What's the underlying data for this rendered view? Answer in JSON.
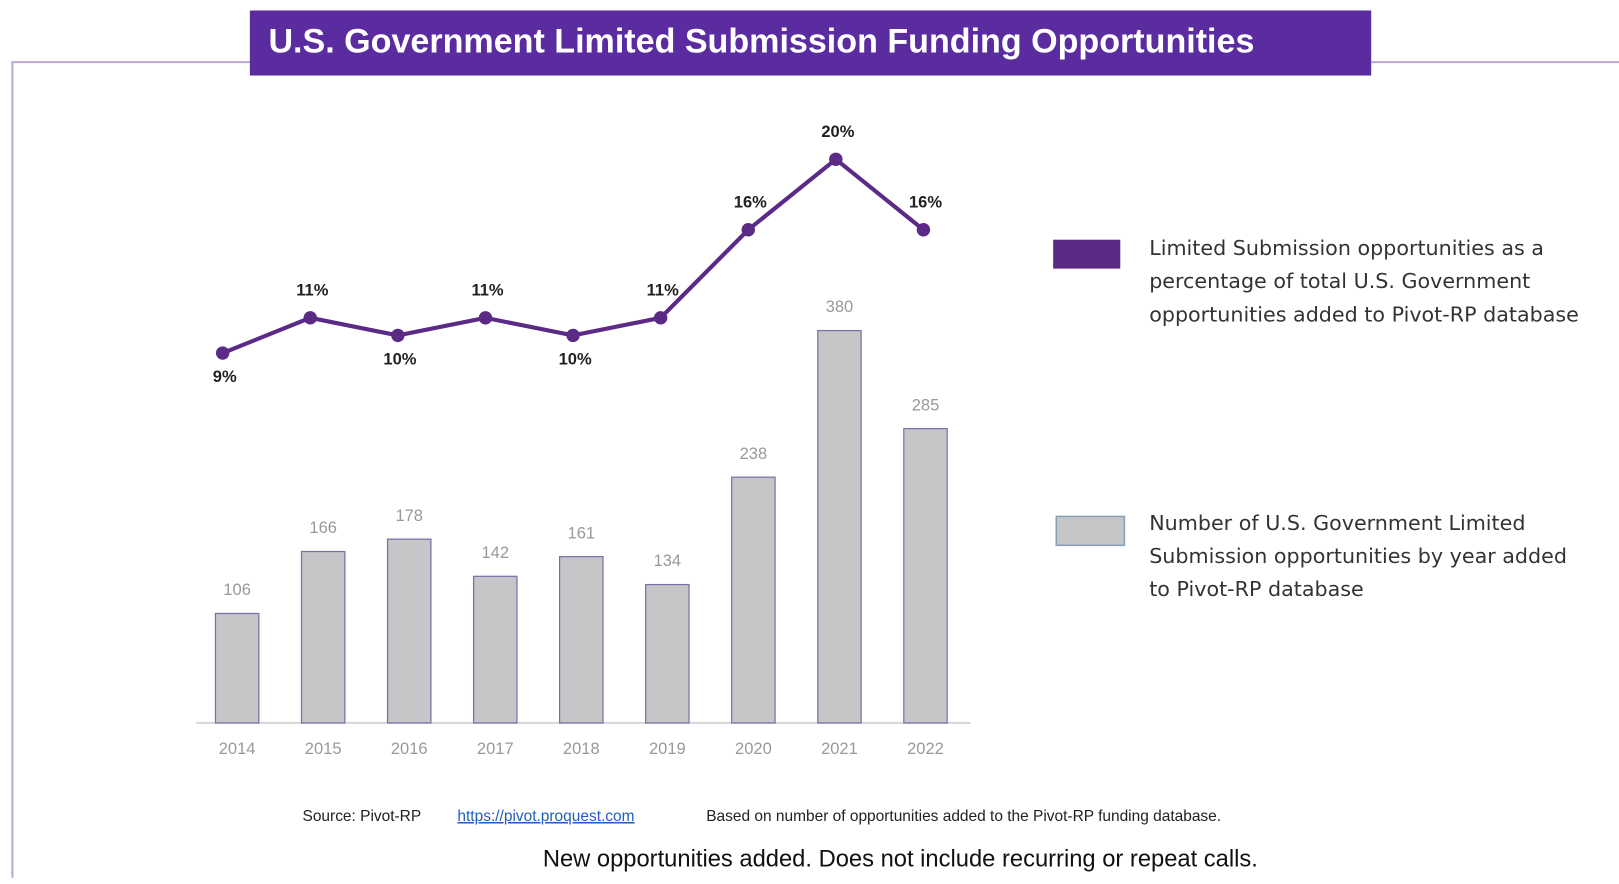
{
  "chart_data": {
    "type": "combo",
    "title": "U.S. Government Limited Submission Funding Opportunities",
    "categories": [
      "2014",
      "2015",
      "2016",
      "2017",
      "2018",
      "2019",
      "2020",
      "2021",
      "2022"
    ],
    "series": [
      {
        "name": "Limited Submission opportunities as a percentage of total U.S. Government opportunities added to Pivot-RP database",
        "type": "line",
        "axis": "y2",
        "color": "#5b2a86",
        "values": [
          9,
          11,
          10,
          11,
          10,
          11,
          16,
          20,
          16
        ],
        "value_labels": [
          "9%",
          "11%",
          "10%",
          "11%",
          "10%",
          "11%",
          "16%",
          "20%",
          "16%"
        ]
      },
      {
        "name": "Number of U.S. Government Limited Submission opportunities by year added to Pivot-RP database",
        "type": "bar",
        "color": "#c6c6c8",
        "values": [
          106,
          166,
          178,
          142,
          161,
          134,
          238,
          380,
          285
        ]
      }
    ],
    "ylim": [
      0,
      580
    ],
    "y2lim": [
      -12,
      22
    ],
    "source": {
      "label": "Source: Pivot-RP",
      "url": "https://pivot.proquest.com",
      "text": "Based on number of opportunities added to the Pivot-RP funding database."
    },
    "note": "New opportunities added. Does not include recurring or repeat calls."
  }
}
